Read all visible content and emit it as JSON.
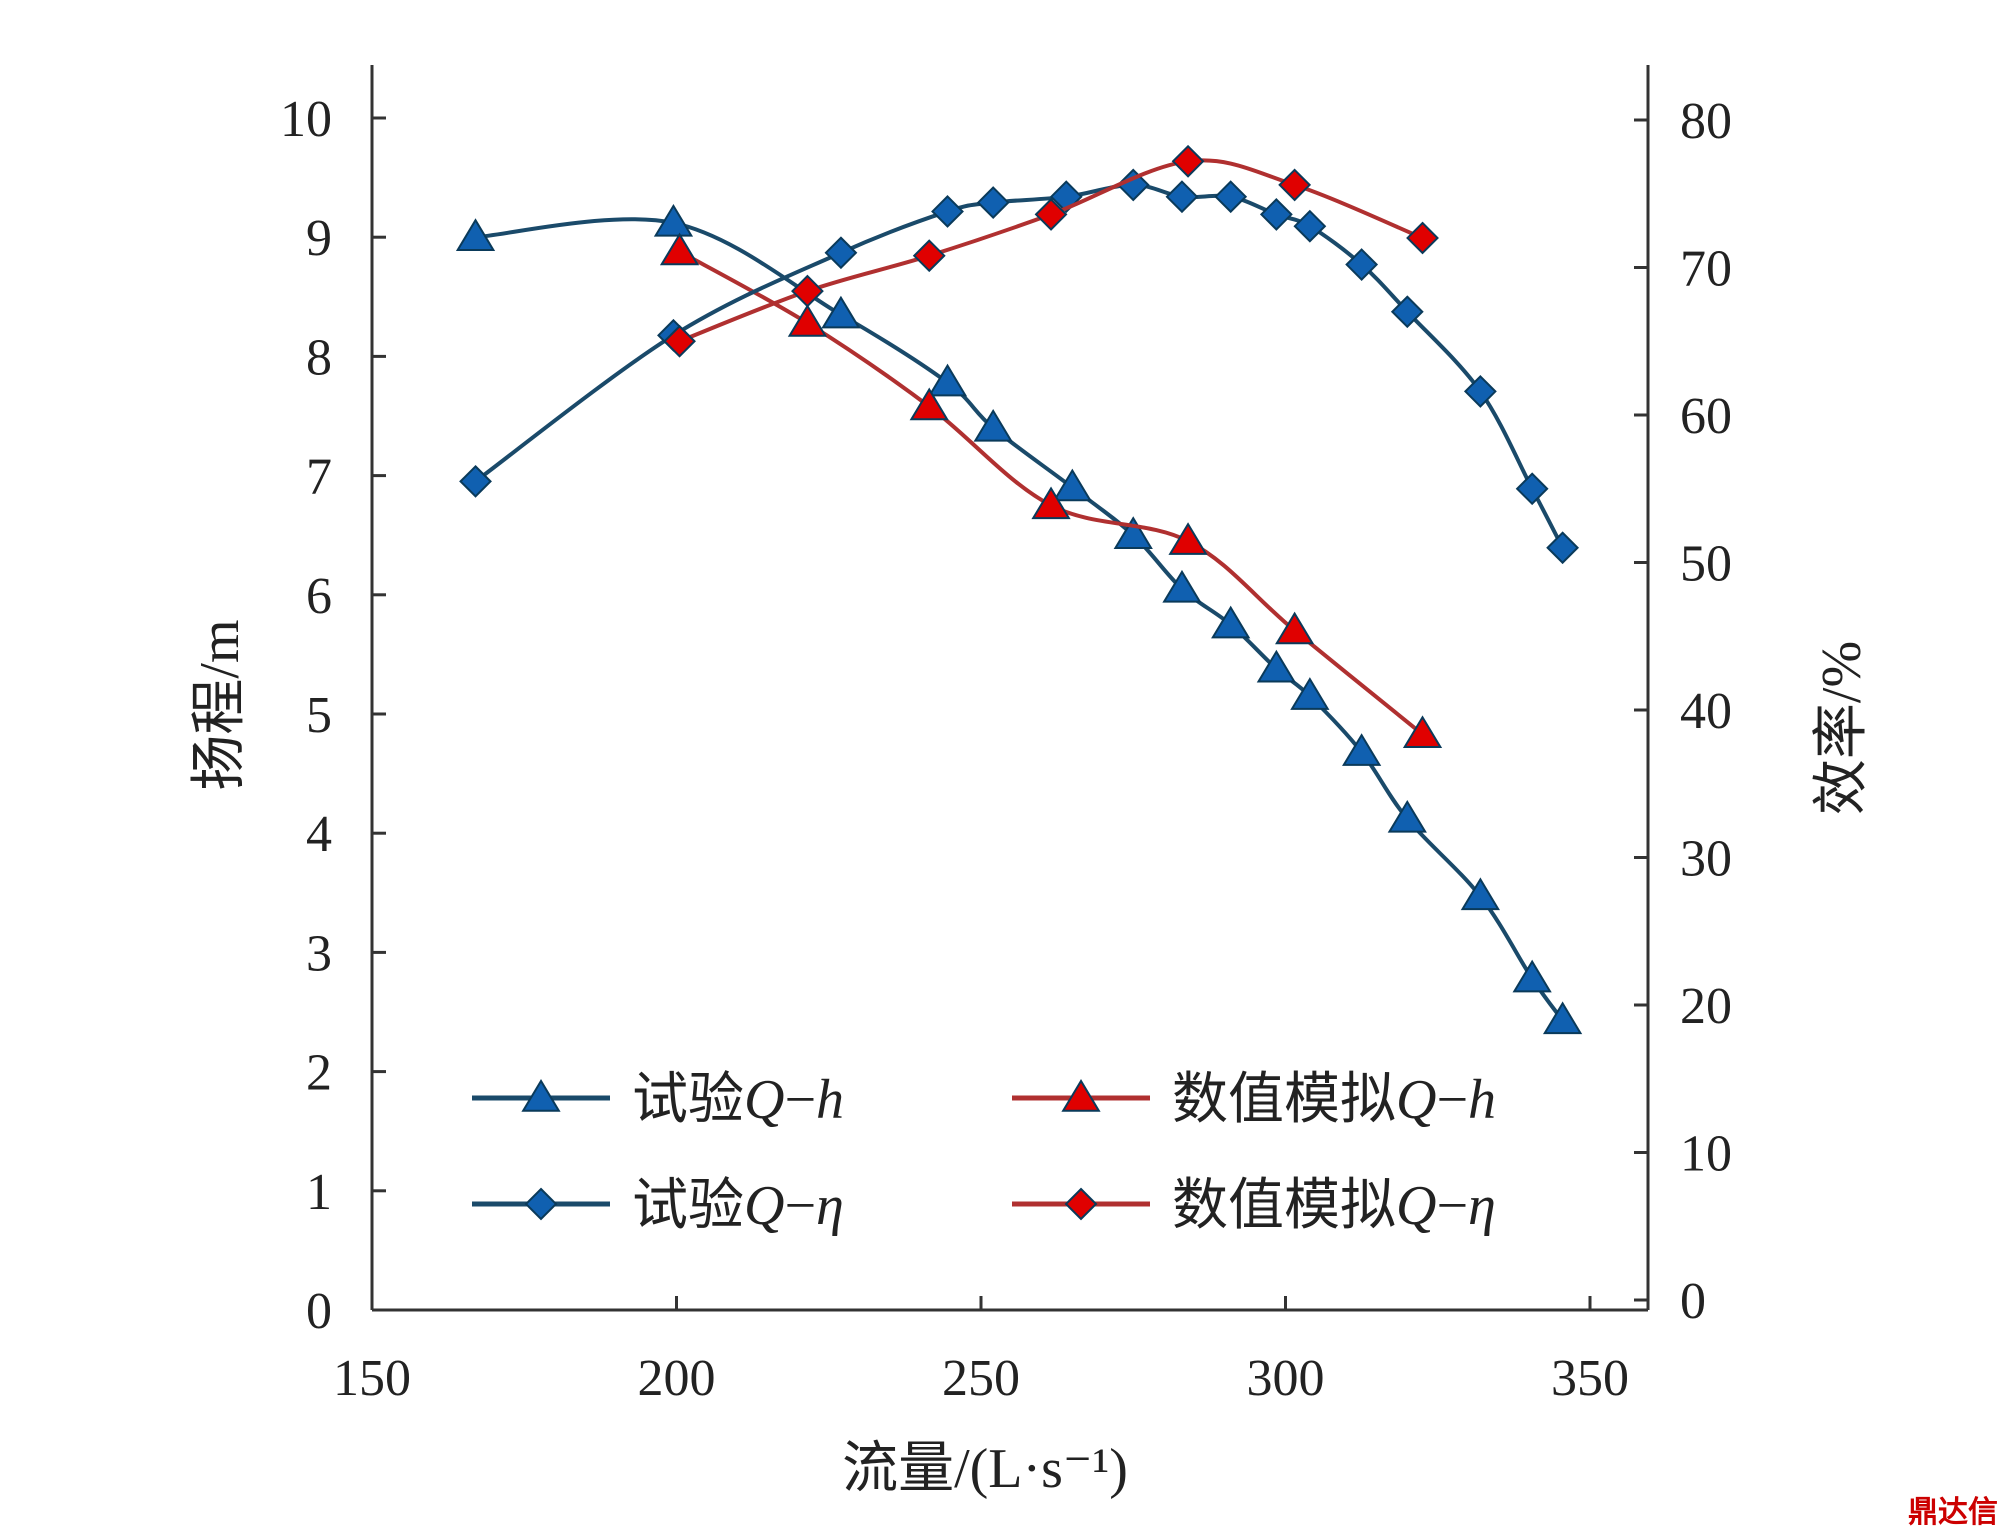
{
  "chart_data": {
    "type": "line",
    "xlabel": "流量/(L·s⁻¹)",
    "ylabel_left": "扬程/m",
    "ylabel_right": "效率/%",
    "xlim": [
      150,
      350
    ],
    "ylim_left": [
      0,
      10
    ],
    "ylim_right": [
      0,
      80
    ],
    "xticks": [
      150,
      200,
      250,
      300,
      350
    ],
    "yticks_left": [
      0,
      1,
      2,
      3,
      4,
      5,
      6,
      7,
      8,
      9,
      10
    ],
    "yticks_right": [
      0,
      10,
      20,
      30,
      40,
      50,
      60,
      70,
      80
    ],
    "grid": false,
    "legend_placement": "bottom",
    "series": [
      {
        "name": "试验Q−h",
        "label_main": "试验",
        "label_q": "Q",
        "label_sep": "−",
        "label_var": "h",
        "axis": "left",
        "marker": "triangle",
        "color": "#1060b0",
        "line_color": "#1a4a6a",
        "x": [
          167,
          199.5,
          227,
          244.5,
          252,
          265,
          275,
          283,
          291,
          298.5,
          304,
          312.5,
          320,
          332,
          340.5,
          345.5
        ],
        "y": [
          9.0,
          9.12,
          8.35,
          7.78,
          7.4,
          6.9,
          6.5,
          6.05,
          5.75,
          5.38,
          5.15,
          4.68,
          4.12,
          3.47,
          2.78,
          2.43
        ]
      },
      {
        "name": "数值模拟Q−h",
        "label_main": "数值模拟",
        "label_q": "Q",
        "label_sep": "−",
        "label_var": "h",
        "axis": "left",
        "marker": "triangle",
        "color": "#e00000",
        "line_color": "#b03030",
        "x": [
          200.5,
          221.5,
          241.5,
          261.5,
          284,
          301.5,
          322.5
        ],
        "y": [
          8.88,
          8.28,
          7.58,
          6.75,
          6.45,
          5.7,
          4.83
        ]
      },
      {
        "name": "试验Q−η",
        "label_main": "试验",
        "label_q": "Q",
        "label_sep": "−",
        "label_var": "η",
        "axis": "right",
        "marker": "diamond",
        "color": "#1060b0",
        "line_color": "#1a4a6a",
        "x": [
          167,
          199.5,
          227,
          244.5,
          252,
          264,
          275,
          283,
          291,
          298.5,
          304,
          312.5,
          320,
          332,
          340.5,
          345.5
        ],
        "y": [
          55.5,
          65.4,
          71,
          73.8,
          74.4,
          74.8,
          75.6,
          74.8,
          74.8,
          73.6,
          72.8,
          70.2,
          67,
          61.6,
          55,
          51
        ]
      },
      {
        "name": "数值模拟Q−η",
        "label_main": "数值模拟",
        "label_q": "Q",
        "label_sep": "−",
        "label_var": "η",
        "axis": "right",
        "marker": "diamond",
        "color": "#e00000",
        "line_color": "#b03030",
        "x": [
          200.5,
          221.5,
          241.5,
          261.5,
          284,
          301.5,
          322.5
        ],
        "y": [
          65,
          68.4,
          70.8,
          73.6,
          77.2,
          75.6,
          72
        ]
      }
    ]
  },
  "watermark": "鼎达信"
}
